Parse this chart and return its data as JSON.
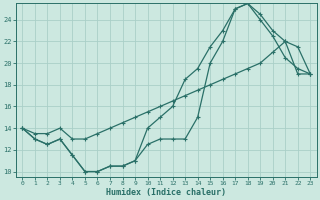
{
  "xlabel": "Humidex (Indice chaleur)",
  "ylabel": "",
  "bg_color": "#cce8e0",
  "grid_color": "#aacfc8",
  "line_color": "#2a7068",
  "xlim": [
    -0.5,
    23.5
  ],
  "ylim": [
    9.5,
    25.5
  ],
  "xticks": [
    0,
    1,
    2,
    3,
    4,
    5,
    6,
    7,
    8,
    9,
    10,
    11,
    12,
    13,
    14,
    15,
    16,
    17,
    18,
    19,
    20,
    21,
    22,
    23
  ],
  "yticks": [
    10,
    12,
    14,
    16,
    18,
    20,
    22,
    24
  ],
  "line1_x": [
    0,
    1,
    2,
    3,
    4,
    5,
    6,
    7,
    8,
    9,
    10,
    11,
    12,
    13,
    14,
    15,
    16,
    17,
    18,
    19,
    20,
    21,
    22,
    23
  ],
  "line1_y": [
    14,
    13,
    12.5,
    13,
    11.5,
    10,
    10,
    10.5,
    10.5,
    11,
    12.5,
    13,
    13,
    13,
    15,
    20,
    22,
    25,
    25.5,
    24,
    22.5,
    20.5,
    19.5,
    19
  ],
  "line2_x": [
    0,
    1,
    2,
    3,
    4,
    5,
    6,
    7,
    8,
    9,
    10,
    11,
    12,
    13,
    14,
    15,
    16,
    17,
    18,
    19,
    20,
    21,
    22,
    23
  ],
  "line2_y": [
    14,
    13,
    12.5,
    13,
    11.5,
    10,
    10,
    10.5,
    10.5,
    11,
    14,
    15,
    16,
    18.5,
    19.5,
    21.5,
    23,
    25,
    25.5,
    24.5,
    23,
    22,
    21.5,
    19
  ],
  "line3_x": [
    0,
    1,
    2,
    3,
    4,
    5,
    6,
    7,
    8,
    9,
    10,
    11,
    12,
    13,
    14,
    15,
    16,
    17,
    18,
    19,
    20,
    21,
    22,
    23
  ],
  "line3_y": [
    14,
    13.5,
    13.5,
    14,
    13,
    13,
    13.5,
    14,
    14.5,
    15,
    15.5,
    16,
    16.5,
    17,
    17.5,
    18,
    18.5,
    19,
    19.5,
    20,
    21,
    22,
    19,
    19
  ]
}
